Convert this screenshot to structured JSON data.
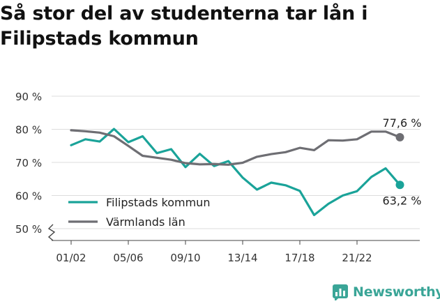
{
  "title": "Så stor del av studenterna tar lån i Filipstads kommun",
  "brand": {
    "name": "Newsworthy",
    "icon": "newsworthy-chart-icon",
    "color": "#3aa597"
  },
  "chart_data": {
    "type": "line",
    "ylim": [
      50,
      90
    ],
    "y_ticks": [
      90,
      80,
      70,
      60,
      50
    ],
    "y_tick_labels": [
      "90 %",
      "80 %",
      "70 %",
      "60 %",
      "50 %"
    ],
    "x_ticks": [
      "01/02",
      "05/06",
      "09/10",
      "13/14",
      "17/18",
      "21/22"
    ],
    "legend_position": "bottom-left",
    "grid": true,
    "series": [
      {
        "name": "Filipstads kommun",
        "color": "#1aa399",
        "values": [
          75.2,
          77.0,
          76.3,
          80.1,
          76.1,
          77.9,
          72.8,
          74.0,
          68.6,
          72.6,
          68.9,
          70.4,
          65.4,
          61.8,
          63.9,
          63.1,
          61.4,
          54.1,
          57.5,
          60.0,
          61.3,
          65.6,
          68.2,
          63.2
        ],
        "end_label": "63,2 %"
      },
      {
        "name": "Värmlands län",
        "color": "#6e6e73",
        "values": [
          79.7,
          79.4,
          79.0,
          77.9,
          75.0,
          72.0,
          71.4,
          70.8,
          69.8,
          69.4,
          69.5,
          69.3,
          69.9,
          71.7,
          72.5,
          73.1,
          74.4,
          73.7,
          76.7,
          76.6,
          77.0,
          79.3,
          79.3,
          77.6
        ],
        "end_label": "77,6 %"
      }
    ]
  }
}
